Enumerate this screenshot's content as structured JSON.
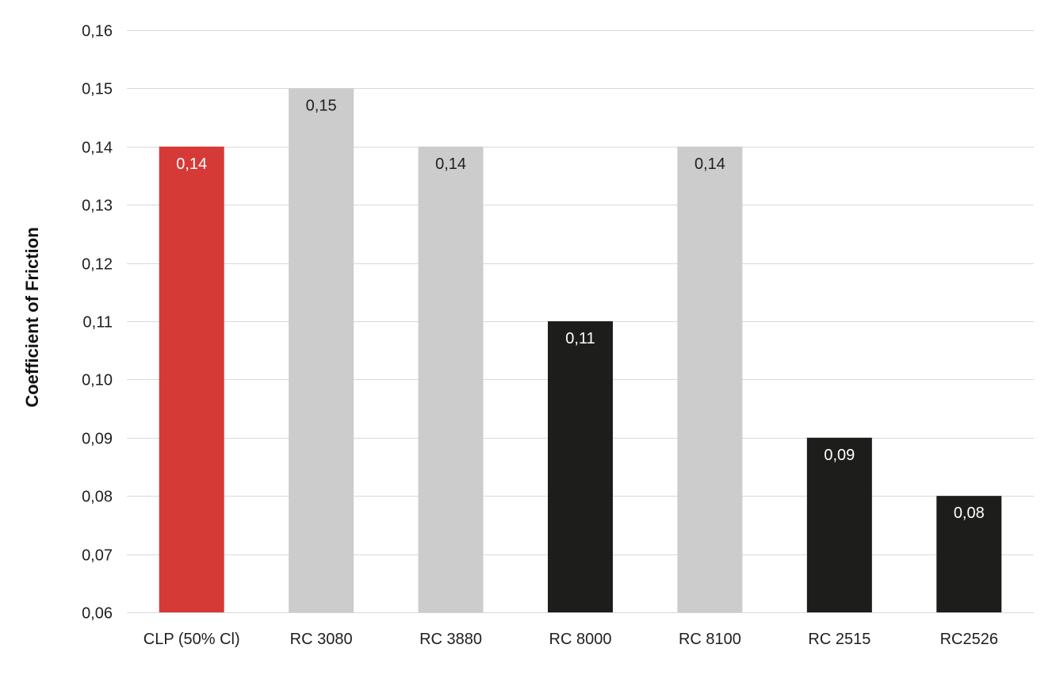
{
  "chart_data": {
    "type": "bar",
    "ylabel": "Coefficient of Friction",
    "ylim": [
      0.06,
      0.16
    ],
    "y_ticks": [
      "0,06",
      "0,07",
      "0,08",
      "0,09",
      "0,10",
      "0,11",
      "0,12",
      "0,13",
      "0,14",
      "0,15",
      "0,16"
    ],
    "y_tick_values": [
      0.06,
      0.07,
      0.08,
      0.09,
      0.1,
      0.11,
      0.12,
      0.13,
      0.14,
      0.15,
      0.16
    ],
    "grid": true,
    "legend": "none",
    "categories": [
      "CLP (50% Cl)",
      "RC 3080",
      "RC 3880",
      "RC 8000",
      "RC 8100",
      "RC 2515",
      "RC2526"
    ],
    "values": [
      0.14,
      0.15,
      0.14,
      0.11,
      0.14,
      0.09,
      0.08
    ],
    "value_labels": [
      "0,14",
      "0,15",
      "0,14",
      "0,11",
      "0,14",
      "0,09",
      "0,08"
    ],
    "colors": [
      "#d63a37",
      "#cccccc",
      "#cccccc",
      "#1d1d1b",
      "#cccccc",
      "#1d1d1b",
      "#1d1d1b"
    ],
    "label_colors": [
      "#ffffff",
      "#1f1f1f",
      "#1f1f1f",
      "#ffffff",
      "#1f1f1f",
      "#ffffff",
      "#ffffff"
    ]
  }
}
